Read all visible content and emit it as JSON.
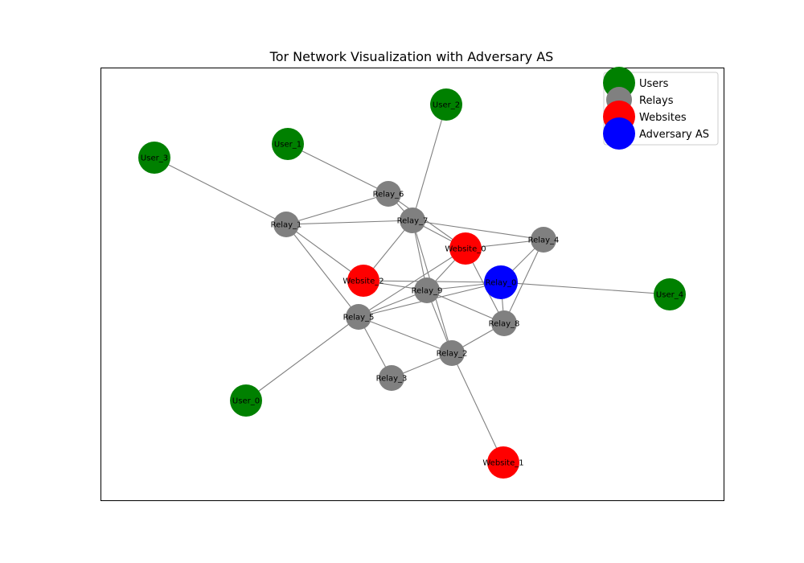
{
  "title": "Tor Network Visualization with Adversary AS",
  "legend": {
    "placement": "top-right",
    "items": [
      {
        "label": "Users",
        "color": "#008000"
      },
      {
        "label": "Relays",
        "color": "#808080"
      },
      {
        "label": "Websites",
        "color": "#ff0000"
      },
      {
        "label": "Adversary AS",
        "color": "#0000ff"
      }
    ]
  },
  "colors": {
    "user": "#008000",
    "relay": "#808080",
    "website": "#ff0000",
    "adversary": "#0000ff",
    "edge": "#808080"
  },
  "nodes": [
    {
      "id": "User_0",
      "type": "user"
    },
    {
      "id": "User_1",
      "type": "user"
    },
    {
      "id": "User_2",
      "type": "user"
    },
    {
      "id": "User_3",
      "type": "user"
    },
    {
      "id": "User_4",
      "type": "user"
    },
    {
      "id": "Relay_1",
      "type": "relay"
    },
    {
      "id": "Relay_2",
      "type": "relay"
    },
    {
      "id": "Relay_3",
      "type": "relay"
    },
    {
      "id": "Relay_4",
      "type": "relay"
    },
    {
      "id": "Relay_5",
      "type": "relay"
    },
    {
      "id": "Relay_6",
      "type": "relay"
    },
    {
      "id": "Relay_7",
      "type": "relay"
    },
    {
      "id": "Relay_8",
      "type": "relay"
    },
    {
      "id": "Relay_9",
      "type": "relay"
    },
    {
      "id": "Website_0",
      "type": "website"
    },
    {
      "id": "Website_1",
      "type": "website"
    },
    {
      "id": "Website_2",
      "type": "website"
    },
    {
      "id": "Relay_0",
      "type": "adversary"
    }
  ],
  "edges": [
    [
      "User_3",
      "Relay_1"
    ],
    [
      "User_1",
      "Relay_6"
    ],
    [
      "User_2",
      "Relay_7"
    ],
    [
      "User_0",
      "Relay_5"
    ],
    [
      "User_4",
      "Relay_0"
    ],
    [
      "Relay_1",
      "Relay_6"
    ],
    [
      "Relay_1",
      "Relay_7"
    ],
    [
      "Relay_1",
      "Website_2"
    ],
    [
      "Relay_1",
      "Relay_5"
    ],
    [
      "Relay_6",
      "Relay_7"
    ],
    [
      "Relay_6",
      "Website_0"
    ],
    [
      "Relay_7",
      "Relay_4"
    ],
    [
      "Relay_7",
      "Website_0"
    ],
    [
      "Relay_7",
      "Relay_9"
    ],
    [
      "Relay_7",
      "Relay_2"
    ],
    [
      "Relay_7",
      "Website_2"
    ],
    [
      "Website_0",
      "Relay_4"
    ],
    [
      "Website_0",
      "Relay_9"
    ],
    [
      "Website_0",
      "Relay_5"
    ],
    [
      "Website_0",
      "Relay_8"
    ],
    [
      "Relay_4",
      "Relay_0"
    ],
    [
      "Relay_4",
      "Relay_8"
    ],
    [
      "Website_2",
      "Relay_0"
    ],
    [
      "Website_2",
      "Relay_9"
    ],
    [
      "Relay_9",
      "Relay_0"
    ],
    [
      "Relay_9",
      "Relay_5"
    ],
    [
      "Relay_9",
      "Relay_8"
    ],
    [
      "Relay_9",
      "Relay_2"
    ],
    [
      "Relay_5",
      "Relay_0"
    ],
    [
      "Relay_5",
      "Relay_2"
    ],
    [
      "Relay_5",
      "Relay_3"
    ],
    [
      "Relay_0",
      "Relay_8"
    ],
    [
      "Relay_8",
      "Relay_2"
    ],
    [
      "Relay_2",
      "Relay_3"
    ],
    [
      "Relay_2",
      "Website_1"
    ]
  ]
}
